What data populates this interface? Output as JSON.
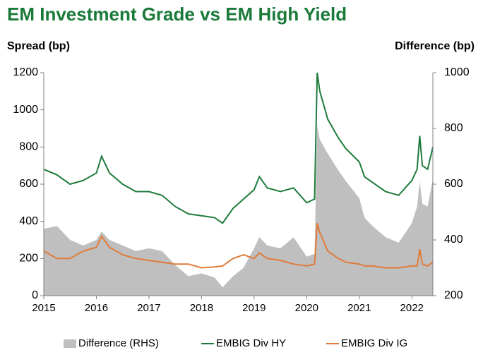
{
  "chart_data": {
    "type": "line",
    "title": "EM Investment Grade vs EM High Yield",
    "ylabel": "Spread (bp)",
    "y2label": "Difference (bp)",
    "xlim": [
      2015,
      2022.4
    ],
    "xticks": [
      2015,
      2016,
      2017,
      2018,
      2019,
      2020,
      2021,
      2022
    ],
    "ylim": [
      0,
      1200
    ],
    "yticks": [
      0,
      200,
      400,
      600,
      800,
      1000,
      1200
    ],
    "y2lim": [
      200,
      1000
    ],
    "y2ticks": [
      200,
      400,
      600,
      800,
      1000
    ],
    "x": [
      2015,
      2015.25,
      2015.5,
      2015.75,
      2016,
      2016.1,
      2016.25,
      2016.5,
      2016.75,
      2017,
      2017.25,
      2017.5,
      2017.75,
      2018,
      2018.25,
      2018.4,
      2018.6,
      2018.8,
      2019,
      2019.1,
      2019.25,
      2019.5,
      2019.75,
      2020,
      2020.15,
      2020.2,
      2020.25,
      2020.4,
      2020.6,
      2020.75,
      2021,
      2021.1,
      2021.25,
      2021.5,
      2021.75,
      2022,
      2022.1,
      2022.15,
      2022.2,
      2022.3,
      2022.4
    ],
    "series": [
      {
        "name": "Difference (RHS)",
        "color": "#bfbfbf",
        "style": "area",
        "axis": "y2",
        "values": [
          440,
          450,
          400,
          380,
          400,
          430,
          400,
          380,
          360,
          370,
          360,
          310,
          270,
          280,
          265,
          230,
          270,
          300,
          370,
          410,
          380,
          370,
          410,
          340,
          350,
          810,
          760,
          710,
          650,
          610,
          550,
          480,
          450,
          410,
          390,
          460,
          520,
          610,
          530,
          520,
          620
        ]
      },
      {
        "name": "EMBIG Div HY",
        "color": "#1e7b3c",
        "style": "line",
        "values": [
          680,
          650,
          600,
          620,
          660,
          750,
          660,
          600,
          560,
          560,
          540,
          480,
          440,
          430,
          420,
          390,
          470,
          520,
          570,
          640,
          580,
          560,
          580,
          500,
          520,
          1200,
          1100,
          950,
          850,
          790,
          720,
          640,
          610,
          560,
          540,
          620,
          680,
          860,
          700,
          680,
          800
        ]
      },
      {
        "name": "EMBIG Div IG",
        "color": "#e07b39",
        "style": "line",
        "values": [
          240,
          200,
          200,
          240,
          260,
          320,
          260,
          220,
          200,
          190,
          180,
          170,
          170,
          150,
          155,
          160,
          200,
          220,
          200,
          230,
          200,
          190,
          170,
          160,
          170,
          390,
          340,
          240,
          200,
          180,
          170,
          160,
          160,
          150,
          150,
          160,
          160,
          250,
          170,
          160,
          180
        ]
      }
    ],
    "title_color": "#1a7a3a"
  }
}
